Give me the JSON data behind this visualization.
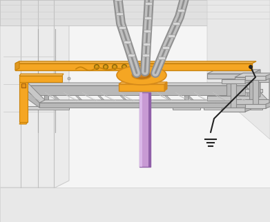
{
  "bg_color": "#f2f2f2",
  "wall_bg": "#e8e8e8",
  "wall_line": "#aaaaaa",
  "tray_top": "#d4d4d4",
  "tray_side": "#b8b8b8",
  "tray_line": "#888888",
  "busbar_face": "#f5a623",
  "busbar_top": "#f8bc5a",
  "busbar_dark": "#c8820a",
  "ct_face": "#f5a623",
  "ct_top": "#f8bc5a",
  "ct_dark": "#d4891a",
  "cable_mid": "#a8a8a8",
  "cable_dark": "#606060",
  "cable_light": "#d0d0d0",
  "wrap_color": "#e0e0e0",
  "lug_body": "#909090",
  "lug_hole": "#606060",
  "conduit_color": "#c89ad4",
  "conduit_hi": "#dab8e8",
  "conduit_dark": "#9060a8",
  "ground_color": "#222222",
  "dash_color": "#707070",
  "ibeam_top": "#d0d0d0",
  "ibeam_side": "#b0b0b0",
  "ibeam_line": "#888888",
  "bracket_color": "#f5a623",
  "bracket_dark": "#c8820a",
  "rung_color": "#c4c4c4",
  "rung_line": "#909090"
}
